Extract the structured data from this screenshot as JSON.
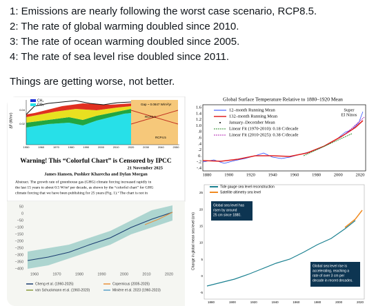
{
  "post": {
    "lines": [
      "1:  Emissions are nearly following the worst case scenario, RCP8.5.",
      "2:  The rate of global warming doubled since 2010.",
      "3:  The rate of ocean warming doubled since 2005.",
      "4:  The rate of sea level rise doubled since 2011."
    ],
    "conclusion": "Things are getting worse, not better."
  },
  "images": {
    "forcing": {
      "legend": [
        "CH₄",
        "CO₂"
      ],
      "y_label": "ΔF (W/m²)",
      "y_ticks": [
        "0.04",
        "0.02"
      ],
      "x_ticks": [
        "1950",
        "1960",
        "1970",
        "1980",
        "1990",
        "2000",
        "2010",
        "2020",
        "2030",
        "2040",
        "2050"
      ],
      "annotations": [
        "Gap ~ 0.0847 W/m²/yr",
        "RCP6.0",
        "RCP4.5"
      ],
      "title": "Warning! This “Colorful Chart” is Censored by IPCC",
      "date": "21 November 2025",
      "authors": "James Hansen, Pushker Kharecha and Dylan Morgan",
      "abstract": [
        "Abstract. The growth rate of greenhouse gas (GHG) climate forcing increased rapidly in",
        "the last 15 years to about 0.5 W/m² per decade, as shown by the “colorful chart” for GHG",
        "climate forcing that we have been publishing for 25 years (Fig. 1).¹ The chart is not in"
      ]
    },
    "temperature": {
      "title": "Global Surface Temperature Relative to 1880–1920 Mean",
      "legend": [
        "12–month Running Mean",
        "132–month Running Mean",
        "January–December Mean",
        "Linear Fit (1970-2010): 0.18 C/decade",
        "Linear Fit (2010-2025): 0.38 C/decade"
      ],
      "annotation": [
        "Super",
        "El Ninos"
      ],
      "y_ticks": [
        "1.6",
        "1.4",
        "1.2",
        "1.0",
        ".8",
        ".6",
        ".4",
        ".2",
        "0.",
        "-.2",
        "-.4"
      ],
      "x_ticks": [
        "1880",
        "1900",
        "1920",
        "1940",
        "1960",
        "1980",
        "2000",
        "2020"
      ]
    },
    "ocean": {
      "y_ticks": [
        "50",
        "0",
        "−50",
        "−100",
        "−150",
        "−200",
        "−250",
        "−300",
        "−350",
        "−400"
      ],
      "x_ticks": [
        "1960",
        "1970",
        "1980",
        "1990",
        "2000",
        "2010",
        "2020"
      ],
      "legend": [
        "Cheng et al. (1960-2025)",
        "Copernicus (2005-2025)",
        "von Schuckmann et al. (1960-2020)",
        "Minière et al. 2023 (1960-2023)"
      ]
    },
    "sea_level": {
      "legend": [
        "Tide gauge sea level reconstruction",
        "Satellite altimetry sea level"
      ],
      "y_label": "Change in global mean sea level (cm)",
      "y_ticks": [
        "25",
        "20",
        "15",
        "10",
        "5",
        "0",
        "-5"
      ],
      "x_ticks": [
        "1880",
        "1900",
        "1920",
        "1940",
        "1960",
        "1980",
        "2000",
        "2020"
      ],
      "notes": [
        [
          "Global sea level has",
          "risen by around",
          "25 cm since 1880."
        ],
        [
          "Global sea level rise is",
          "accelerating, reaching a",
          "rate of over 3 cm per",
          "decade in recent decades."
        ]
      ]
    }
  }
}
